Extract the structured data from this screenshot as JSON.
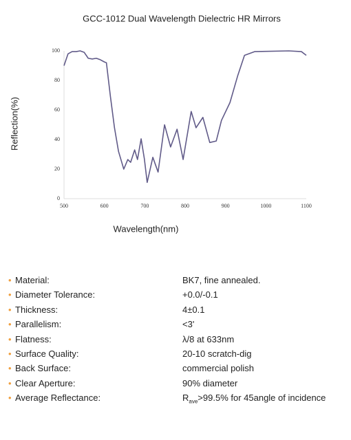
{
  "chart_data": {
    "type": "line",
    "title": "GCC-1012 Dual Wavelength Dielectric HR Mirrors",
    "x_label": "Wavelength(nm)",
    "y_label": "Reflection(%)",
    "x": [
      500,
      510,
      520,
      530,
      540,
      550,
      560,
      570,
      580,
      590,
      600,
      605,
      615,
      625,
      635,
      648,
      658,
      665,
      675,
      682,
      691,
      699,
      706,
      720,
      733,
      749,
      764,
      780,
      795,
      815,
      827,
      844,
      861,
      877,
      890,
      911,
      930,
      947,
      972,
      1057,
      1088,
      1100
    ],
    "values": [
      90,
      98,
      99.5,
      99.5,
      100,
      99,
      95,
      94.5,
      95,
      94,
      92.5,
      92,
      69,
      48,
      32,
      20,
      26.5,
      24.6,
      33,
      26.5,
      40.5,
      27,
      11,
      28,
      18,
      50,
      35,
      47,
      26.5,
      59,
      48,
      55,
      38,
      39,
      53,
      65,
      83,
      97,
      99.5,
      100,
      99.5,
      97
    ],
    "color": "#605a88",
    "xlim": [
      500,
      1100
    ],
    "xticks": [
      500,
      600,
      700,
      800,
      900,
      1000,
      1100
    ],
    "ylim": [
      0,
      100
    ],
    "yticks": [
      0,
      20,
      40,
      60,
      80,
      100
    ]
  },
  "specs": {
    "rows": [
      {
        "label": "Material:",
        "value": "BK7, fine annealed."
      },
      {
        "label": "Diameter Tolerance:",
        "value": "+0.0/-0.1"
      },
      {
        "label": "Thickness:",
        "value": "4±0.1"
      },
      {
        "label": "Parallelism:",
        "value": "<3'"
      },
      {
        "label": "Flatness:",
        "value": "λ/8 at 633nm"
      },
      {
        "label": "Surface Quality:",
        "value": "20-10 scratch-dig"
      },
      {
        "label": "Back Surface:",
        "value": "commercial polish"
      },
      {
        "label": "Clear Aperture:",
        "value": "90% diameter"
      },
      {
        "label": "Average Reflectance:",
        "value": "R",
        "subscript": "ave",
        "suffix": ">99.5% for 45angle of incidence"
      }
    ]
  }
}
